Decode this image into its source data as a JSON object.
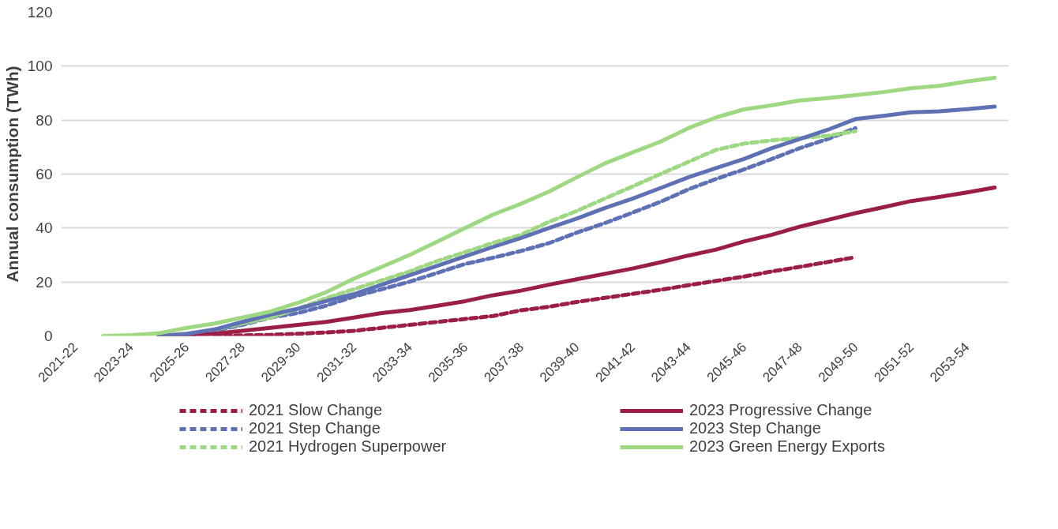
{
  "chart_data": {
    "type": "line",
    "ylabel": "Annual consumption (TWh)",
    "categories": [
      "2021-22",
      null,
      "2023-24",
      null,
      "2025-26",
      null,
      "2027-28",
      null,
      "2029-30",
      null,
      "2031-32",
      null,
      "2033-34",
      null,
      "2035-36",
      null,
      "2037-38",
      null,
      "2039-40",
      null,
      "2041-42",
      null,
      "2043-44",
      null,
      "2045-46",
      null,
      "2047-48",
      null,
      "2049-50",
      null,
      "2051-52",
      null,
      "2053-54",
      null
    ],
    "series": [
      {
        "name": "2021 Slow Change",
        "color": "#9b1f45",
        "line_style": "dashed",
        "values": [
          null,
          null,
          null,
          null,
          null,
          0,
          0.2,
          0.4,
          0.8,
          1.3,
          1.9,
          3,
          4.1,
          5.2,
          6.3,
          7.4,
          9.5,
          10.8,
          12.6,
          14.1,
          15.6,
          17.1,
          18.8,
          20.4,
          22,
          23.9,
          25.6,
          27.4,
          29.2,
          null,
          null,
          null,
          null,
          null
        ]
      },
      {
        "name": "2021 Step Change",
        "color": "#5f71b5",
        "line_style": "dashed",
        "values": [
          null,
          null,
          null,
          0,
          0,
          1.9,
          4.1,
          6.8,
          8.5,
          11.2,
          14.6,
          17.3,
          20.1,
          23.4,
          26.7,
          29,
          31.5,
          34.4,
          38.3,
          41.8,
          45.7,
          49.7,
          54.3,
          58.2,
          61.7,
          65.6,
          69.6,
          73,
          77,
          null,
          null,
          null,
          null,
          null
        ]
      },
      {
        "name": "2021 Hydrogen Superpower",
        "color": "#9fd882",
        "line_style": "dashed",
        "values": [
          null,
          null,
          null,
          0,
          0.5,
          2.4,
          4.6,
          6.8,
          10.1,
          14,
          17.3,
          20.6,
          23.9,
          27.8,
          31.1,
          34.5,
          37.5,
          42.3,
          46.3,
          50.9,
          55.4,
          60,
          64.5,
          69,
          71.3,
          72.5,
          73.4,
          74.2,
          75.9,
          null,
          null,
          null,
          null,
          null
        ]
      },
      {
        "name": "2023 Progressive Change",
        "color": "#9b1f45",
        "line_style": "solid",
        "values": [
          null,
          null,
          null,
          0,
          0,
          0.8,
          1.9,
          3,
          4.1,
          5.2,
          6.8,
          8.5,
          9.6,
          11.2,
          12.9,
          15.1,
          16.8,
          19,
          21,
          23,
          25,
          27.3,
          29.8,
          32,
          35,
          37.5,
          40.5,
          43,
          45.5,
          47.7,
          50,
          51.5,
          53.2,
          55
        ]
      },
      {
        "name": "2023 Step Change",
        "color": "#5f71b5",
        "line_style": "solid",
        "values": [
          null,
          null,
          null,
          0,
          0.8,
          2.4,
          5.2,
          7.9,
          10.1,
          12.9,
          15.5,
          19,
          22.5,
          26,
          29.5,
          33,
          36.3,
          40,
          43.5,
          47.4,
          50.9,
          54.8,
          58.8,
          62.2,
          65.6,
          69.6,
          73,
          76.4,
          80.4,
          81.6,
          82.9,
          83.3,
          84.1,
          85
        ]
      },
      {
        "name": "2023 Green Energy Exports",
        "color": "#9fd882",
        "line_style": "solid",
        "values": [
          null,
          0,
          0.3,
          1,
          3,
          4.6,
          6.8,
          9,
          12.3,
          16.2,
          21.2,
          25.6,
          30,
          35,
          40,
          45,
          49,
          53.5,
          58.8,
          63.9,
          68,
          72,
          77,
          81,
          84,
          85.5,
          87.3,
          88.2,
          89.3,
          90.4,
          91.8,
          92.7,
          94.3,
          95.7
        ]
      }
    ],
    "ylim": [
      0,
      120
    ],
    "yticks": [
      0,
      20,
      40,
      60,
      80,
      100,
      120
    ],
    "grid": "y",
    "legend": "bottom"
  }
}
